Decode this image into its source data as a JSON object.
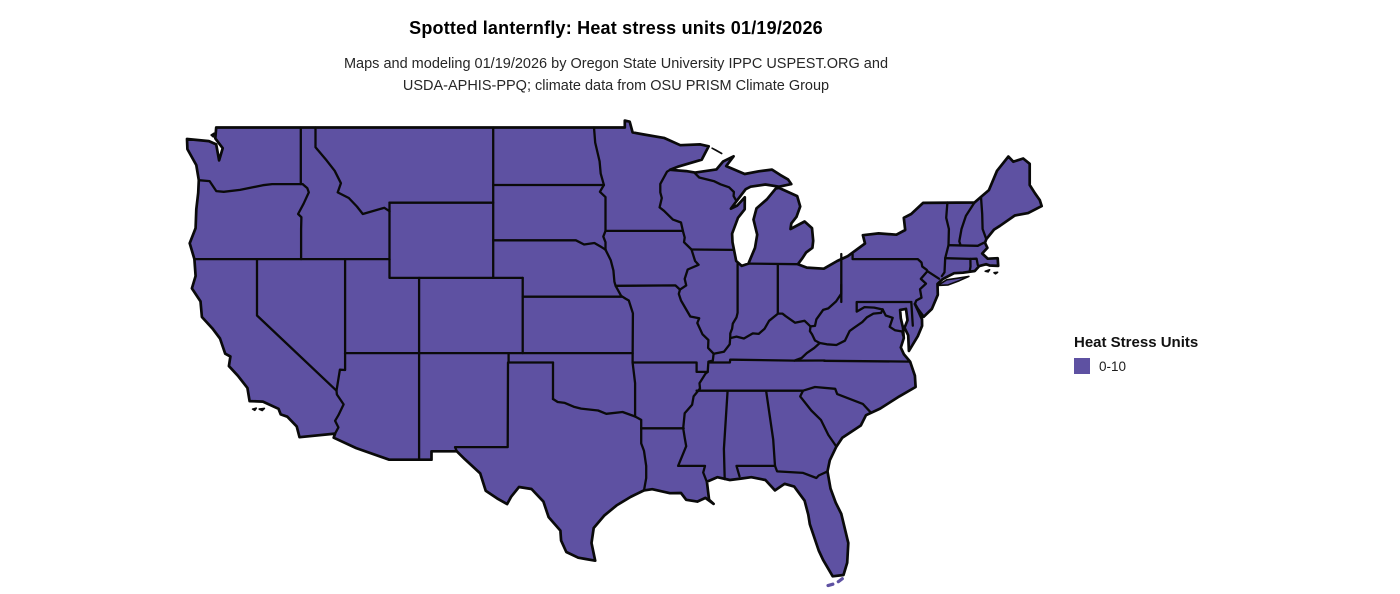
{
  "title": "Spotted lanternfly: Heat stress units 01/19/2026",
  "subtitle_line1": "Maps and modeling 01/19/2026 by Oregon State University IPPC USPEST.ORG and",
  "subtitle_line2": "USDA-APHIS-PPQ; climate data from OSU PRISM Climate Group",
  "legend": {
    "title": "Heat Stress Units",
    "items": [
      {
        "label": "0-10",
        "color": "#5e51a2"
      }
    ]
  },
  "map": {
    "fill_color": "#5e51a2",
    "border_color": "#0a0a0a",
    "water_color": "#ffffff"
  }
}
